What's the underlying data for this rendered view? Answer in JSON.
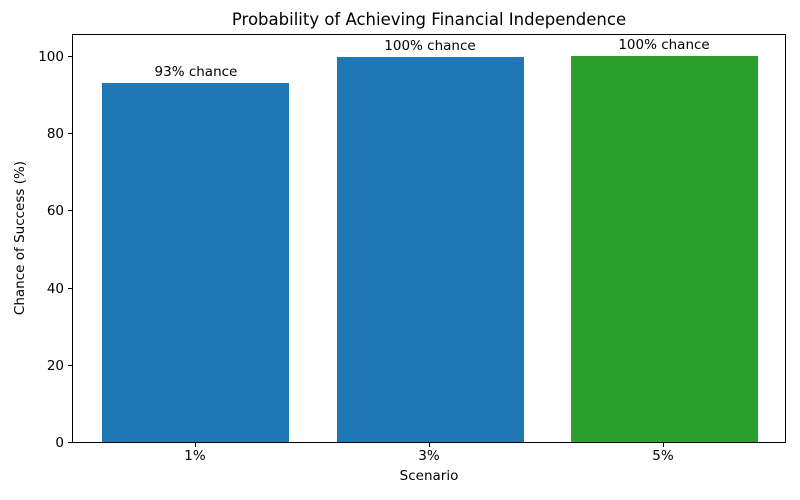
{
  "chart_data": {
    "type": "bar",
    "title": "Probability of Achieving Financial Independence",
    "xlabel": "Scenario",
    "ylabel": "Chance of Success (%)",
    "categories": [
      "1%",
      "3%",
      "5%"
    ],
    "values": [
      93,
      99.7,
      100
    ],
    "bar_labels": [
      "93% chance",
      "100% chance",
      "100% chance"
    ],
    "bar_colors": [
      "#1f77b4",
      "#1f77b4",
      "#2ca02c"
    ],
    "yticks": [
      0,
      20,
      40,
      60,
      80,
      100
    ],
    "ylim": [
      0,
      106
    ],
    "grid": false,
    "legend": "none",
    "background_color": "#ffffff",
    "axis_color": "#000000"
  }
}
